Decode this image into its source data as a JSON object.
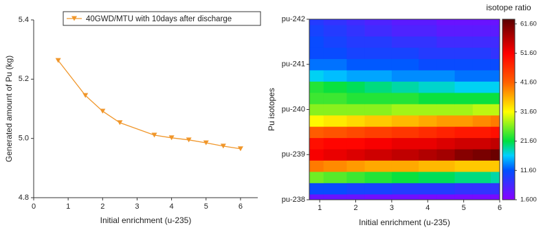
{
  "chart_data": [
    {
      "type": "line",
      "xlabel": "Initial enrichment (u-235)",
      "ylabel": "Generated amount of Pu (kg)",
      "x": [
        0.711,
        1.5,
        2,
        2.5,
        3.5,
        4,
        4.5,
        5,
        5.5,
        6
      ],
      "series": [
        {
          "name": "40GWD/MTU with 10days after discharge",
          "color": "#f0962a",
          "values": [
            5.263,
            5.145,
            5.092,
            5.053,
            5.011,
            5.002,
            4.995,
            4.985,
            4.974,
            4.965
          ]
        }
      ],
      "xlim": [
        0,
        6.5
      ],
      "xticks": [
        0,
        1,
        2,
        3,
        4,
        5,
        6
      ],
      "ylim": [
        4.8,
        5.4
      ],
      "yticks": [
        {
          "value": 4.8,
          "label": "4.8"
        },
        {
          "value": 5,
          "label": "5.0"
        },
        {
          "value": 5.2,
          "label": "5.2"
        },
        {
          "value": 5.4,
          "label": "5.4"
        }
      ],
      "legend": "upper right"
    },
    {
      "type": "heatmap",
      "xlabel": "Initial enrichment (u-235)",
      "ylabel": "Pu isotopes",
      "colorbar_label": "isotope ratio",
      "x": [
        0.711,
        1.5,
        2,
        2.5,
        3.5,
        4,
        4.5,
        5,
        5.5,
        6
      ],
      "y": [
        0,
        0.25,
        0.5,
        0.75,
        1,
        1.25,
        1.5,
        1.75,
        2,
        2.25,
        2.5,
        2.75,
        3,
        3.25,
        3.5,
        3.75,
        4
      ],
      "z": [
        [
          4,
          4,
          4,
          3.5,
          3.5,
          3,
          3,
          3,
          3,
          3
        ],
        [
          11,
          11,
          10,
          10,
          9,
          9,
          9,
          8,
          8,
          8
        ],
        [
          26,
          25,
          24,
          23,
          22,
          21,
          21,
          20,
          20,
          19
        ],
        [
          40,
          39,
          38,
          37,
          37,
          36,
          36,
          35,
          35,
          35
        ],
        [
          52,
          53,
          54,
          55,
          56,
          57,
          58,
          60,
          61,
          62
        ],
        [
          50,
          51,
          51,
          52,
          53,
          53,
          54,
          55,
          55,
          56
        ],
        [
          42,
          43,
          44,
          45,
          46,
          47,
          48,
          49,
          49,
          50
        ],
        [
          32,
          33,
          34,
          35,
          36,
          37,
          38,
          38,
          39,
          40
        ],
        [
          27,
          27,
          27,
          27,
          28,
          28,
          28,
          28,
          29,
          29
        ],
        [
          24,
          24,
          23,
          23,
          23,
          22,
          22,
          22,
          22,
          22
        ],
        [
          23,
          22,
          21,
          20,
          19,
          18,
          18,
          17,
          17,
          17
        ],
        [
          17,
          16,
          15,
          15,
          14,
          14,
          14,
          13,
          13,
          13
        ],
        [
          13,
          13,
          12,
          12,
          12,
          11,
          11,
          11,
          11,
          11
        ],
        [
          11,
          11,
          10,
          10,
          10,
          9,
          9,
          9,
          9,
          8
        ],
        [
          11,
          10,
          9,
          9,
          8,
          8,
          7,
          7,
          7,
          7
        ],
        [
          10,
          9,
          8,
          7,
          6,
          6,
          5,
          5,
          5,
          5
        ],
        [
          9,
          8,
          7,
          6,
          5,
          5,
          4,
          4,
          4,
          4
        ]
      ],
      "xlim": [
        0.711,
        6
      ],
      "xticks": [
        1,
        2,
        3,
        4,
        5,
        6
      ],
      "ylim": [
        0,
        4
      ],
      "yticks": [
        {
          "value": 0,
          "label": "pu-238"
        },
        {
          "value": 1,
          "label": "pu-239"
        },
        {
          "value": 2,
          "label": "pu-240"
        },
        {
          "value": 3,
          "label": "pu-241"
        },
        {
          "value": 4,
          "label": "pu-242"
        }
      ],
      "zlim": [
        1.6,
        63.2
      ],
      "zticks": [
        {
          "value": 1.6,
          "label": "1.600"
        },
        {
          "value": 11.6,
          "label": "11.60"
        },
        {
          "value": 21.6,
          "label": "21.60"
        },
        {
          "value": 31.6,
          "label": "31.60"
        },
        {
          "value": 41.6,
          "label": "41.60"
        },
        {
          "value": 51.6,
          "label": "51.60"
        },
        {
          "value": 61.6,
          "label": "61.60"
        }
      ]
    }
  ]
}
